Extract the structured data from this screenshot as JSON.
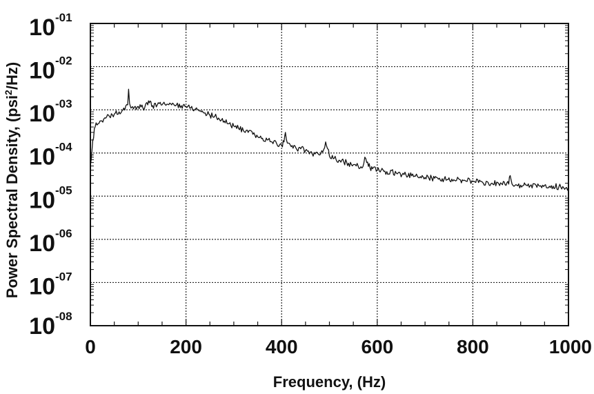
{
  "chart_data": {
    "type": "line",
    "title": "",
    "xlabel": "Frequency, (Hz)",
    "ylabel": "Power Spectral Density, (psi²/Hz)",
    "ylabel_parts": {
      "before": "Power Spectral Density, (psi",
      "sup": "2",
      "after": "/Hz)"
    },
    "xlim": [
      0,
      1000
    ],
    "ylim": [
      1e-08,
      0.1
    ],
    "yscale": "log",
    "grid": true,
    "x_ticks": [
      0,
      200,
      400,
      600,
      800,
      1000
    ],
    "x_tick_labels": [
      "0",
      "200",
      "400",
      "600",
      "800",
      "1000"
    ],
    "y_ticks": [
      {
        "base": "10",
        "exp": "-01"
      },
      {
        "base": "10",
        "exp": "-02"
      },
      {
        "base": "10",
        "exp": "-03"
      },
      {
        "base": "10",
        "exp": "-04"
      },
      {
        "base": "10",
        "exp": "-05"
      },
      {
        "base": "10",
        "exp": "-06"
      },
      {
        "base": "10",
        "exp": "-07"
      },
      {
        "base": "10",
        "exp": "-08"
      }
    ],
    "series": [
      {
        "color": "#111111",
        "x": [
          0,
          5,
          10,
          20,
          30,
          40,
          50,
          60,
          70,
          78,
          80,
          82,
          85,
          90,
          100,
          110,
          120,
          125,
          130,
          140,
          150,
          160,
          170,
          180,
          190,
          200,
          210,
          220,
          230,
          240,
          250,
          260,
          270,
          280,
          290,
          300,
          310,
          320,
          330,
          340,
          350,
          360,
          370,
          380,
          390,
          400,
          405,
          408,
          412,
          420,
          430,
          440,
          450,
          460,
          470,
          480,
          488,
          492,
          500,
          510,
          520,
          530,
          540,
          550,
          560,
          570,
          574,
          578,
          585,
          590,
          600,
          620,
          640,
          660,
          680,
          700,
          720,
          740,
          760,
          780,
          800,
          820,
          840,
          860,
          875,
          878,
          882,
          890,
          900,
          920,
          940,
          960,
          980,
          1000
        ],
        "y": [
          5e-05,
          0.0002,
          0.0004,
          0.00055,
          0.00065,
          0.0007,
          0.0008,
          0.0009,
          0.0011,
          0.0013,
          0.003,
          0.0014,
          0.0011,
          0.00105,
          0.0012,
          0.0011,
          0.0013,
          0.0016,
          0.00125,
          0.0013,
          0.0013,
          0.00135,
          0.0013,
          0.0013,
          0.00125,
          0.0012,
          0.0011,
          0.00105,
          0.00095,
          0.00085,
          0.00075,
          0.0007,
          0.0006,
          0.00055,
          0.00048,
          0.00042,
          0.00037,
          0.00033,
          0.0003,
          0.00027,
          0.00024,
          0.00022,
          0.0002,
          0.00018,
          0.00016,
          0.00015,
          0.00018,
          0.0003,
          0.00017,
          0.00014,
          0.00013,
          0.000125,
          0.000115,
          0.000105,
          9.5e-05,
          9e-05,
          0.00012,
          0.00018,
          8.5e-05,
          7.5e-05,
          6.8e-05,
          6.2e-05,
          5.8e-05,
          5.4e-05,
          5e-05,
          4.8e-05,
          8e-05,
          6e-05,
          4.5e-05,
          4.3e-05,
          4e-05,
          3.7e-05,
          3.4e-05,
          3.1e-05,
          2.9e-05,
          2.7e-05,
          2.6e-05,
          2.5e-05,
          2.4e-05,
          2.3e-05,
          2.2e-05,
          2.1e-05,
          2e-05,
          1.95e-05,
          1.9e-05,
          3e-05,
          1.9e-05,
          1.85e-05,
          1.8e-05,
          1.75e-05,
          1.7e-05,
          1.7e-05,
          1.65e-05,
          1.6e-05
        ]
      }
    ]
  }
}
